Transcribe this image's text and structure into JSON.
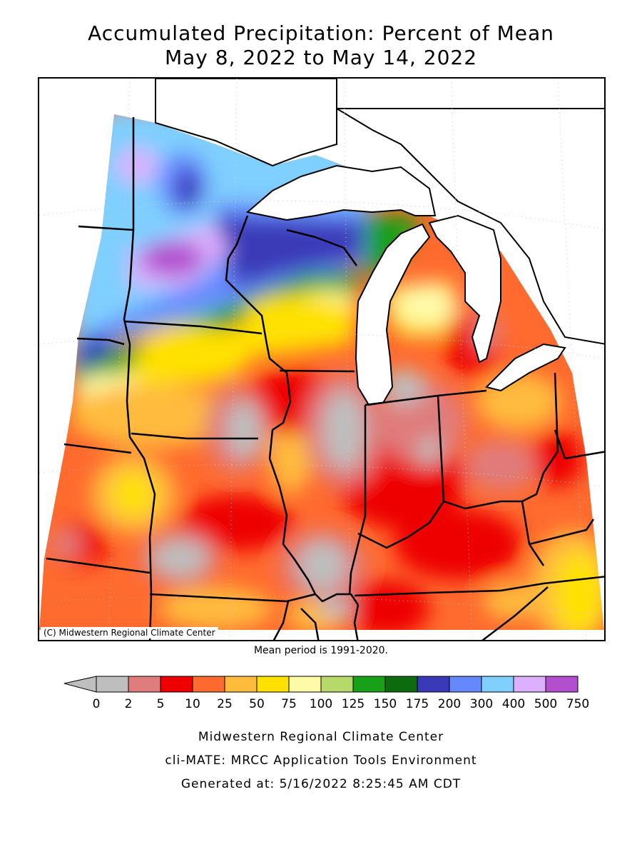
{
  "title": {
    "line1": "Accumulated Precipitation: Percent of Mean",
    "line2": "May 8, 2022 to May 14, 2022"
  },
  "map": {
    "copyright": "(C) Midwestern Regional Climate Center",
    "mean_note": "Mean period is 1991-2020."
  },
  "legend": {
    "under_color": "#bebebe",
    "bins": [
      {
        "color": "#bebebe"
      },
      {
        "color": "#e07c7c"
      },
      {
        "color": "#ee0000"
      },
      {
        "color": "#ff6a2e"
      },
      {
        "color": "#ffbb3c"
      },
      {
        "color": "#ffe100"
      },
      {
        "color": "#fffaa8"
      },
      {
        "color": "#b7d96a"
      },
      {
        "color": "#19a019"
      },
      {
        "color": "#0d6b0d"
      },
      {
        "color": "#3a3ab8"
      },
      {
        "color": "#6688ff"
      },
      {
        "color": "#7fcfff"
      },
      {
        "color": "#dcb0ff"
      },
      {
        "color": "#b24fcf"
      }
    ],
    "labels": [
      "0",
      "2",
      "5",
      "10",
      "25",
      "50",
      "75",
      "100",
      "125",
      "150",
      "175",
      "200",
      "300",
      "400",
      "500",
      "750"
    ]
  },
  "footer": {
    "line1": "Midwestern Regional Climate Center",
    "line2": "cli-MATE: MRCC Application Tools Environment",
    "line3": "Generated at: 5/16/2022 8:25:45 AM CDT"
  }
}
